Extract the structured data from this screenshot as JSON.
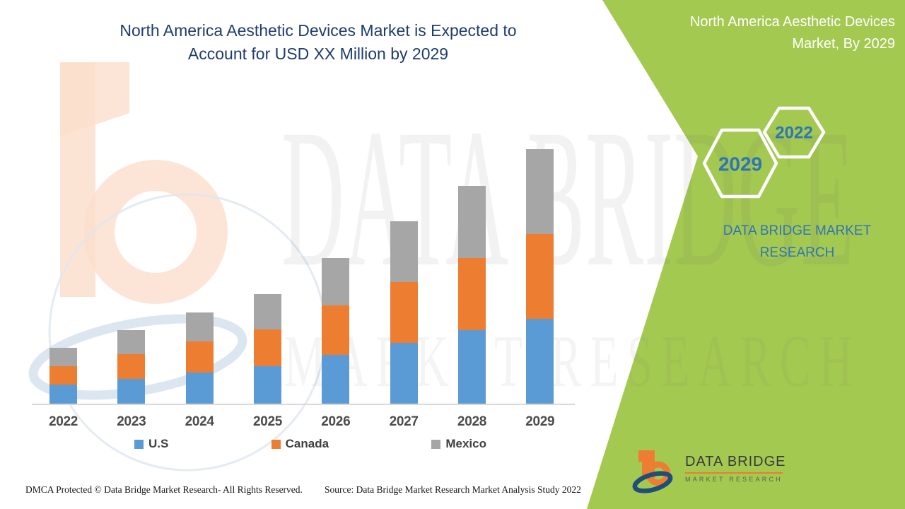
{
  "colors": {
    "panel_green": "#a4c951",
    "title_navy": "#1e3c6d",
    "steel_blue": "#2e75b6",
    "us_blue": "#5b9bd5",
    "canada_orange": "#ed7d31",
    "mexico_gray": "#a6a6a6",
    "axis_line_gray": "#d9d9d9",
    "logo_orange": "#ed7d31",
    "logo_navy": "#1f4e79"
  },
  "header": {
    "title_line1": "North America Aesthetic Devices Market is Expected to",
    "title_line2": "Account for USD XX Million by 2029"
  },
  "side_panel": {
    "title_line1": "North America Aesthetic Devices",
    "title_line2": "Market, By 2029",
    "hexagons": [
      {
        "label": "2029"
      },
      {
        "label": "2022"
      }
    ],
    "brand_line1": "DATA BRIDGE MARKET",
    "brand_line2": "RESEARCH"
  },
  "logo": {
    "title": "DATA BRIDGE",
    "subtitle": "MARKET RESEARCH"
  },
  "watermark": {
    "line1": "DATA BRIDGE",
    "line2": "MARKET RESEARCH"
  },
  "footer": {
    "dmca": "DMCA Protected © Data Bridge Market Research- All Rights Reserved.",
    "source": "Source: Data Bridge Market Research Market Analysis Study 2022"
  },
  "chart_data": {
    "type": "bar",
    "stacked": true,
    "title": "North America Aesthetic Devices Market is Expected to Account for USD XX Million by 2029",
    "xlabel": "",
    "ylabel": "",
    "value_axis_visible": false,
    "grid": false,
    "legend_position": "bottom",
    "units_note": "actual values shown as 'USD XX Million'; series values are relative heights estimated from pixels",
    "categories": [
      "2022",
      "2023",
      "2024",
      "2025",
      "2026",
      "2027",
      "2028",
      "2029"
    ],
    "series": [
      {
        "name": "U.S",
        "color": "#5b9bd5",
        "values": [
          28,
          36,
          45,
          54,
          70,
          87,
          105,
          121
        ]
      },
      {
        "name": "Canada",
        "color": "#ed7d31",
        "values": [
          26,
          35,
          44,
          52,
          70,
          86,
          102,
          120
        ]
      },
      {
        "name": "Mexico",
        "color": "#a6a6a6",
        "values": [
          26,
          34,
          41,
          50,
          67,
          86,
          102,
          120
        ]
      }
    ]
  }
}
